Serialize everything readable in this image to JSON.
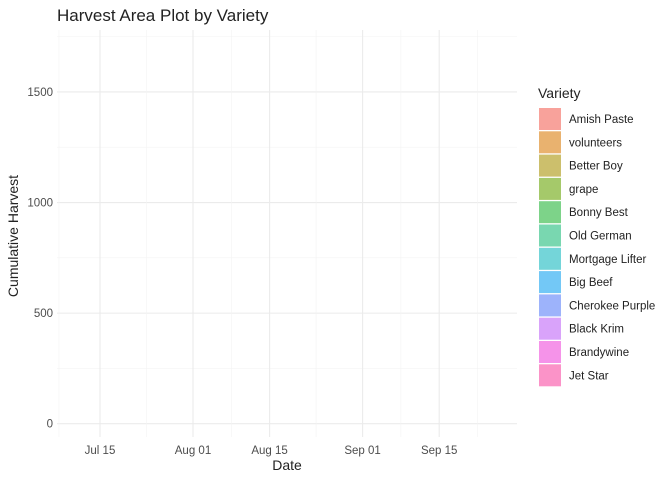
{
  "chart_data": {
    "type": "area",
    "title": "Harvest Area Plot by Variety",
    "xlabel": "Date",
    "ylabel": "Cumulative Harvest",
    "x_ticks": [
      "Jul 15",
      "Aug 01",
      "Aug 15",
      "Sep 01",
      "Sep 15"
    ],
    "y_ticks": [
      "0",
      "500",
      "1000",
      "1500"
    ],
    "ylim": [
      -60,
      1780
    ],
    "grid": true,
    "legend_position": "right",
    "legend_title": "Variety",
    "series": [
      {
        "name": "Amish Paste",
        "color": "#f8a29b",
        "values": []
      },
      {
        "name": "volunteers",
        "color": "#e9b26f",
        "values": []
      },
      {
        "name": "Better Boy",
        "color": "#ccbf6c",
        "values": []
      },
      {
        "name": "grape",
        "color": "#a5c96a",
        "values": []
      },
      {
        "name": "Bonny Best",
        "color": "#7dd389",
        "values": []
      },
      {
        "name": "Old German",
        "color": "#79d7b0",
        "values": []
      },
      {
        "name": "Mortgage Lifter",
        "color": "#74d5d9",
        "values": []
      },
      {
        "name": "Big Beef",
        "color": "#73c8f6",
        "values": []
      },
      {
        "name": "Cherokee Purple",
        "color": "#9db3fb",
        "values": []
      },
      {
        "name": "Black Krim",
        "color": "#d9a3fa",
        "values": []
      },
      {
        "name": "Brandywine",
        "color": "#f593e9",
        "values": []
      },
      {
        "name": "Jet Star",
        "color": "#fb93c8",
        "values": []
      }
    ]
  }
}
